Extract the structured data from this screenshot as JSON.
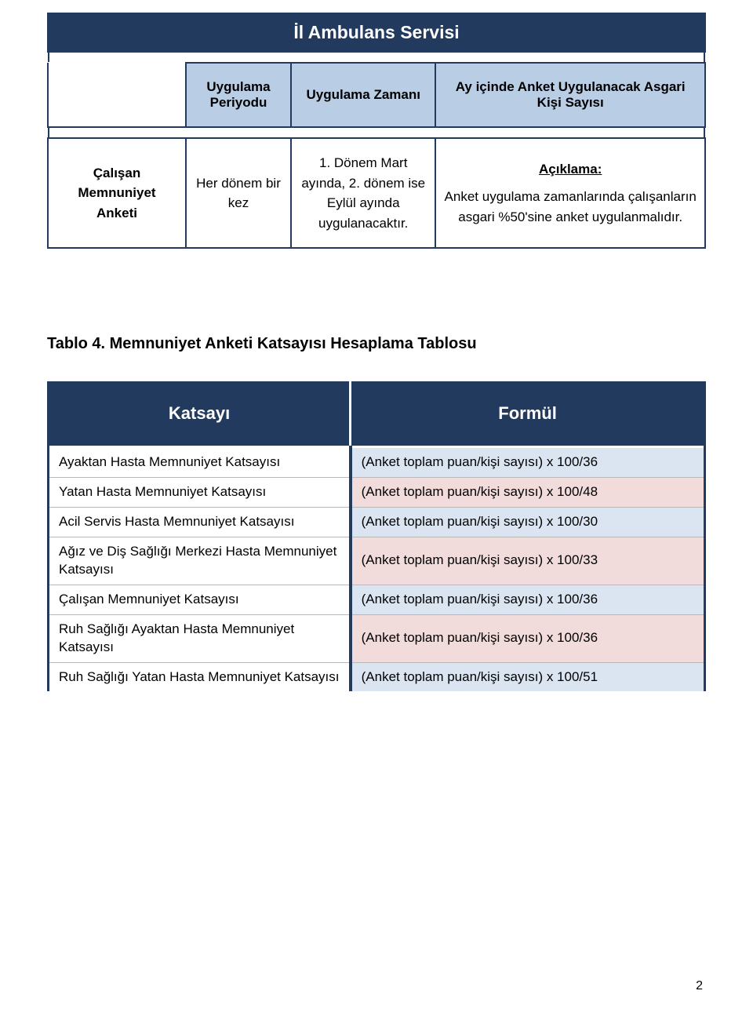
{
  "colors": {
    "navy": "#223a5e",
    "header_blue": "#b9cde5",
    "cell_blue": "#dbe5f1",
    "cell_pink": "#f2dbdb",
    "rule_gray": "#b9b9b9",
    "white": "#ffffff",
    "black": "#000000"
  },
  "table1": {
    "title": "İl Ambulans Servisi",
    "head": {
      "col0_blank": "",
      "col1": "Uygulama Periyodu",
      "col2": "Uygulama Zamanı",
      "col3": "Ay içinde Anket Uygulanacak Asgari Kişi Sayısı"
    },
    "row": {
      "col0": "Çalışan Memnuniyet Anketi",
      "col1": "Her dönem bir kez",
      "col2": "1. Dönem Mart ayında,   2. dönem ise Eylül ayında uygulanacaktır.",
      "aciklama_label": "Açıklama:",
      "col3_body": "Anket uygulama zamanlarında çalışanların asgari   %50'sine anket uygulanmalıdır."
    },
    "widths_percent": [
      21,
      16,
      22,
      41
    ]
  },
  "section_heading": "Tablo 4. Memnuniyet Anketi Katsayısı Hesaplama Tablosu",
  "table2": {
    "head_left": "Katsayı",
    "head_right": "Formül",
    "col_widths_percent": [
      46,
      54
    ],
    "rows": [
      {
        "left": "Ayaktan Hasta Memnuniyet Katsayısı",
        "right": "(Anket toplam puan/kişi sayısı) x 100/36",
        "tone": "blue"
      },
      {
        "left": "Yatan Hasta Memnuniyet Katsayısı",
        "right": "(Anket toplam puan/kişi sayısı) x 100/48",
        "tone": "pink"
      },
      {
        "left": "Acil Servis Hasta Memnuniyet Katsayısı",
        "right": "(Anket toplam puan/kişi sayısı) x 100/30",
        "tone": "blue"
      },
      {
        "left": "Ağız ve Diş Sağlığı Merkezi Hasta Memnuniyet Katsayısı",
        "right": "(Anket toplam puan/kişi sayısı) x 100/33",
        "tone": "pink"
      },
      {
        "left": "Çalışan Memnuniyet Katsayısı",
        "right": "(Anket toplam puan/kişi sayısı) x 100/36",
        "tone": "blue"
      },
      {
        "left": "Ruh Sağlığı Ayaktan Hasta Memnuniyet Katsayısı",
        "right": "(Anket toplam puan/kişi sayısı) x 100/36",
        "tone": "pink"
      },
      {
        "left": "Ruh Sağlığı Yatan Hasta Memnuniyet Katsayısı",
        "right": "(Anket toplam puan/kişi sayısı) x 100/51",
        "tone": "blue"
      }
    ]
  },
  "page_number": "2"
}
